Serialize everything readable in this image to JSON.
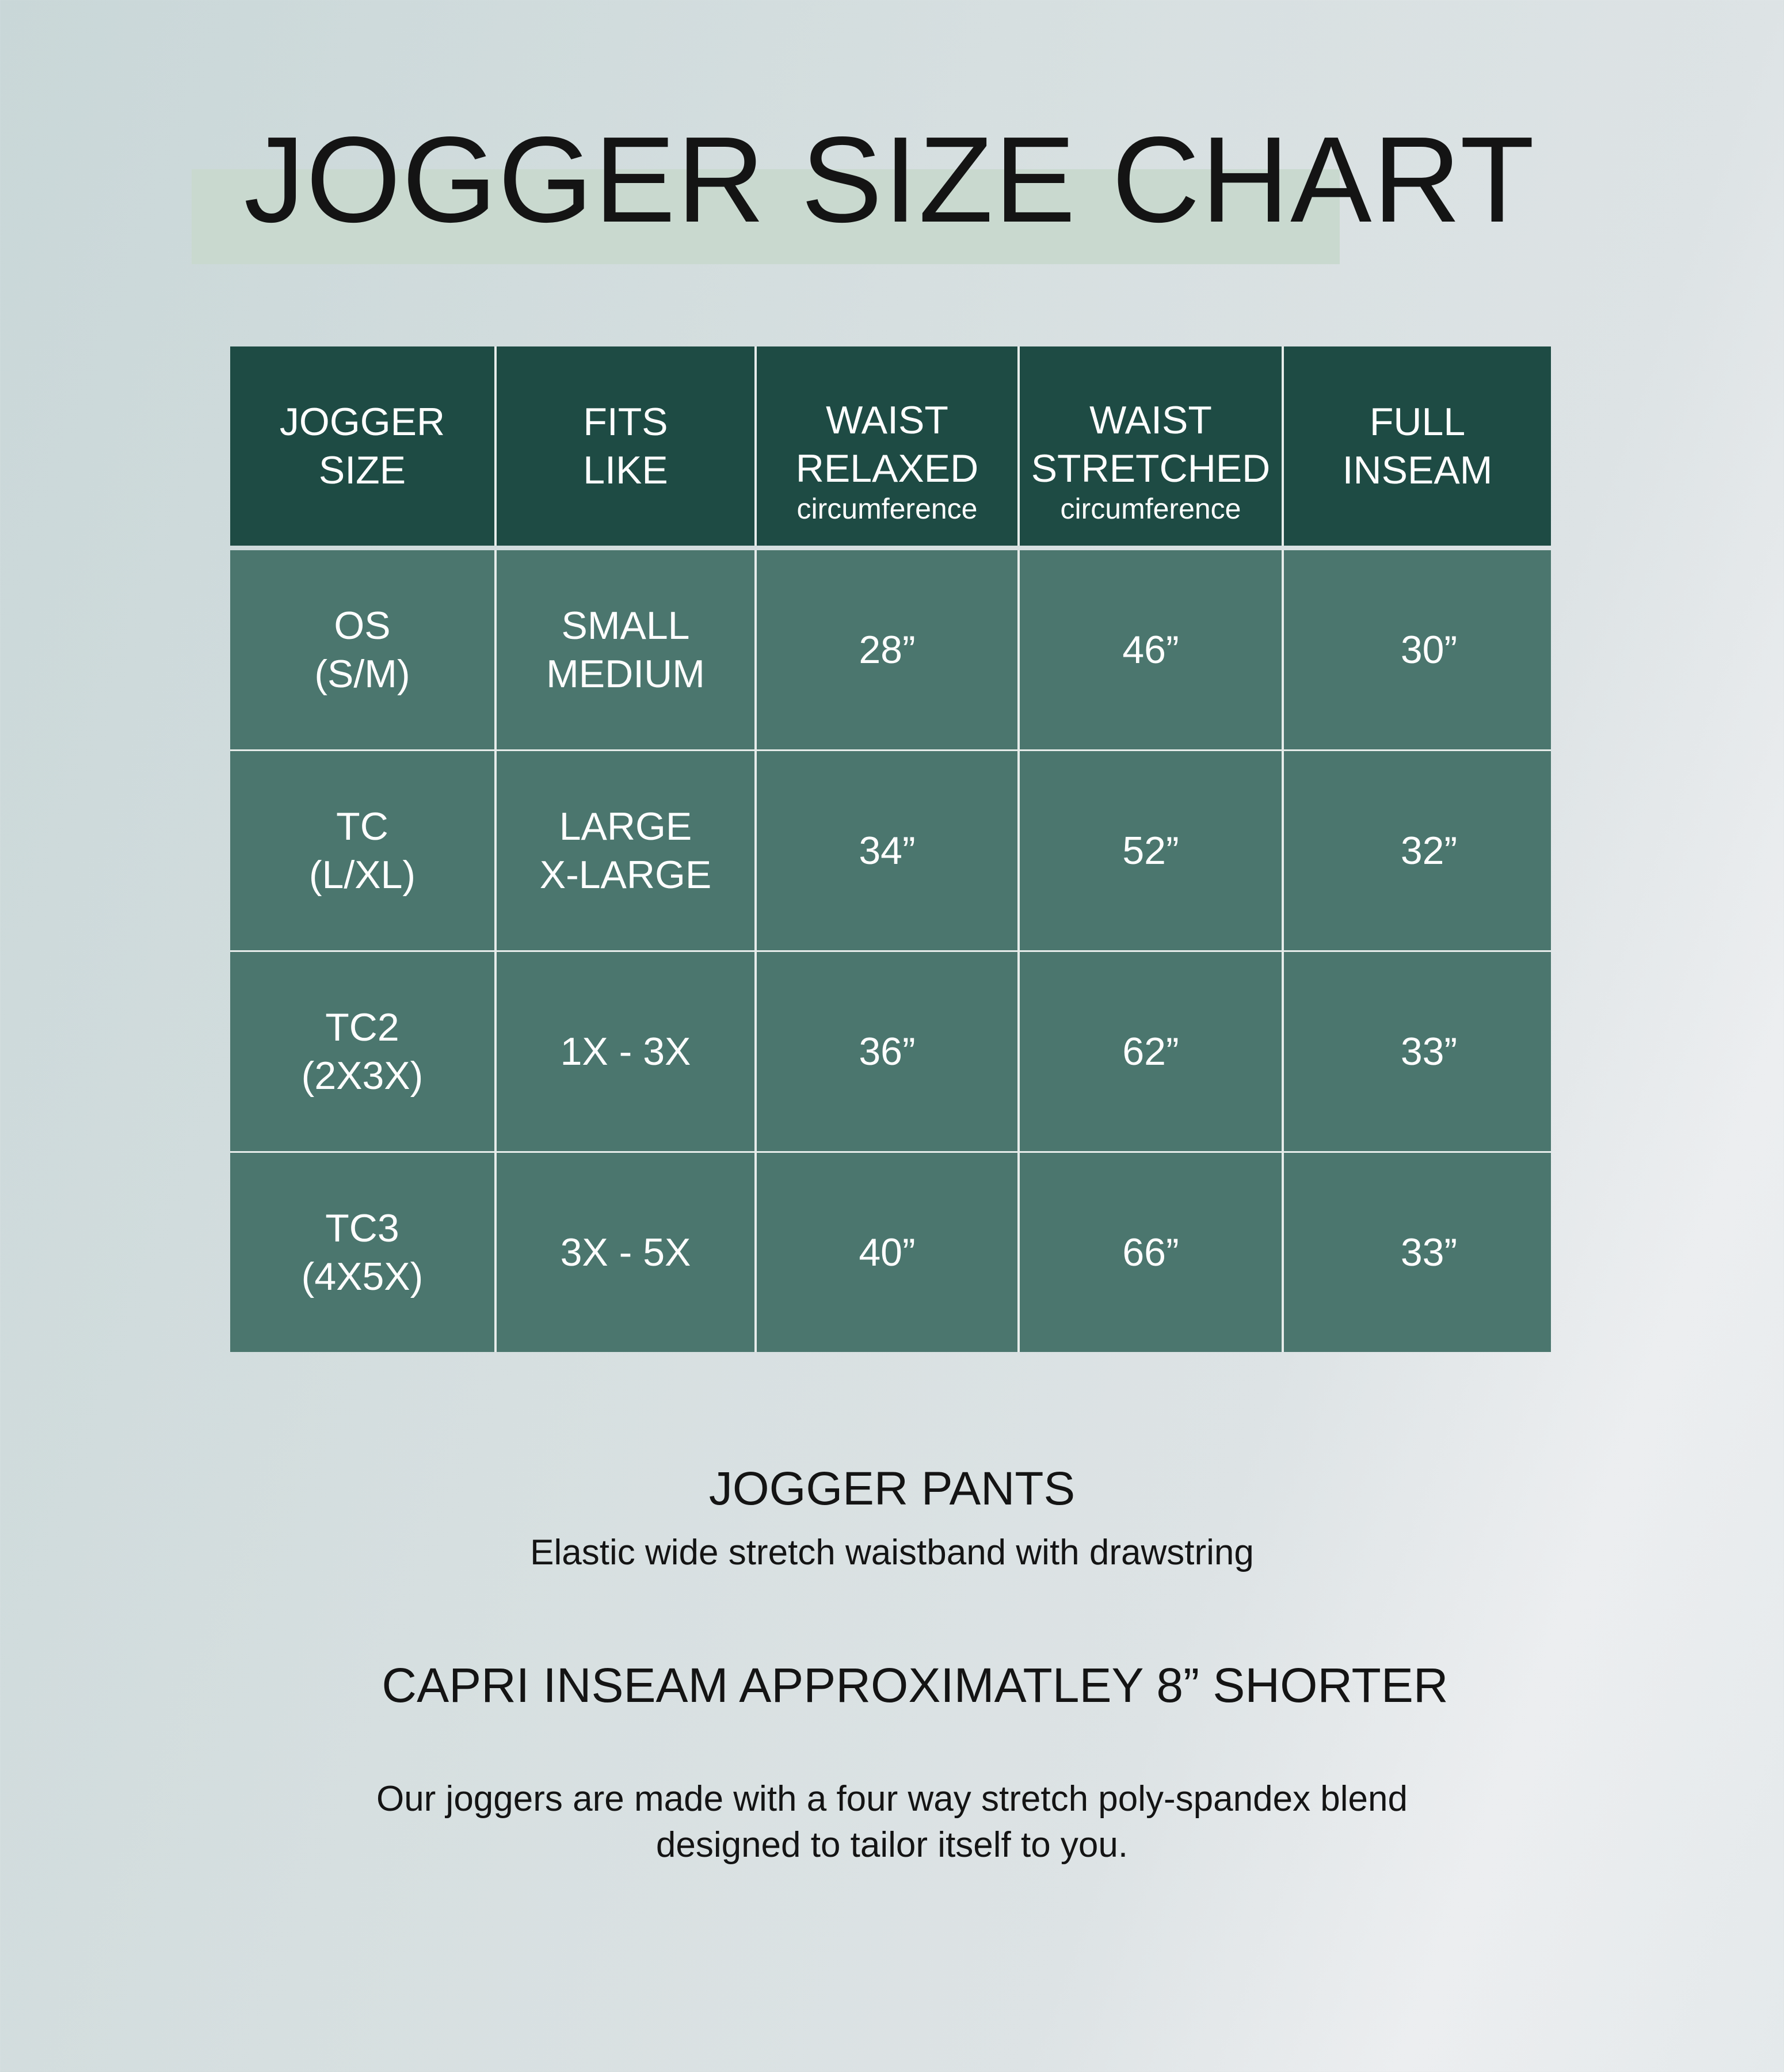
{
  "title": "JOGGER SIZE CHART",
  "colors": {
    "header": "#1e4b44",
    "body": "#4b766e",
    "highlight": "#c9d9cf"
  },
  "table": {
    "headers": [
      {
        "line1": "JOGGER",
        "line2": "SIZE",
        "sub": ""
      },
      {
        "line1": "FITS",
        "line2": "LIKE",
        "sub": ""
      },
      {
        "line1": "WAIST",
        "line2": "RELAXED",
        "sub": "circumference"
      },
      {
        "line1": "WAIST",
        "line2": "STRETCHED",
        "sub": "circumference"
      },
      {
        "line1": "FULL",
        "line2": "INSEAM",
        "sub": ""
      }
    ],
    "rows": [
      {
        "size": [
          "OS",
          "(S/M)"
        ],
        "fits": [
          "SMALL",
          "MEDIUM"
        ],
        "relaxed": "28”",
        "stretched": "46”",
        "inseam": "30”"
      },
      {
        "size": [
          "TC",
          "(L/XL)"
        ],
        "fits": [
          "LARGE",
          "X-LARGE"
        ],
        "relaxed": "34”",
        "stretched": "52”",
        "inseam": "32”"
      },
      {
        "size": [
          "TC2",
          "(2X3X)"
        ],
        "fits": [
          "1X - 3X"
        ],
        "relaxed": "36”",
        "stretched": "62”",
        "inseam": "33”"
      },
      {
        "size": [
          "TC3",
          "(4X5X)"
        ],
        "fits": [
          "3X - 5X"
        ],
        "relaxed": "40”",
        "stretched": "66”",
        "inseam": "33”"
      }
    ]
  },
  "footer": {
    "heading": "JOGGER PANTS",
    "subheading": "Elastic wide stretch waistband with drawstring",
    "capri": "CAPRI INSEAM APPROXIMATLEY 8” SHORTER",
    "para_line1": "Our joggers are made with a four way stretch poly-spandex blend",
    "para_line2": "designed to tailor itself to you."
  }
}
